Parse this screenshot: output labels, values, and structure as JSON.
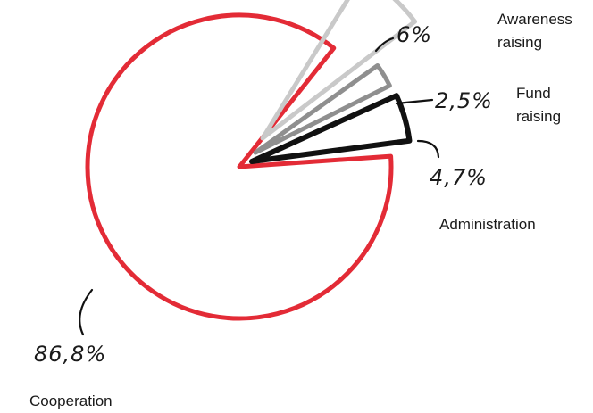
{
  "chart_data": {
    "type": "pie",
    "title": "",
    "categories": [
      "Cooperation",
      "Awareness raising",
      "Fund raising",
      "Administration"
    ],
    "values": [
      86.8,
      6,
      2.5,
      4.7
    ],
    "value_labels": [
      "86,8%",
      "6%",
      "2,5%",
      "4,7%"
    ],
    "colors": [
      "#e32b36",
      "#c9c9c9",
      "#8f8f8f",
      "#111111"
    ],
    "style": "hand-drawn outline, exploded slices"
  }
}
